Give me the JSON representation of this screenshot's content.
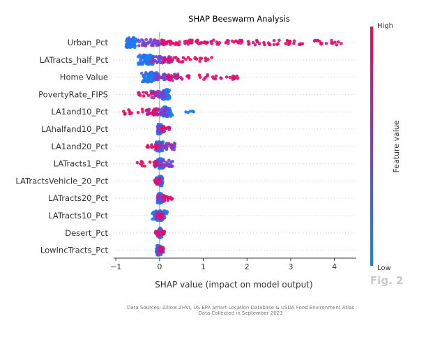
{
  "chart_data": {
    "type": "scatter",
    "subtype": "shap-beeswarm",
    "title": "SHAP Beeswarm Analysis",
    "xlabel": "SHAP value (impact on model output)",
    "ylabel": "",
    "xlim": [
      -1.05,
      4.5
    ],
    "xticks": [
      "−1",
      "0",
      "1",
      "2",
      "3",
      "4"
    ],
    "xtick_values": [
      -1,
      0,
      1,
      2,
      3,
      4
    ],
    "grid": false,
    "colorbar": {
      "label": "Feature value",
      "high": "High",
      "low": "Low",
      "color_low": "#008afb",
      "color_mid": "#7d3dd1",
      "color_high": "#ff0052"
    },
    "features": [
      {
        "name": "Urban_Pct",
        "low_cluster": {
          "min": -0.8,
          "max": -0.5,
          "center": -0.72
        },
        "mid_cluster": {
          "min": -0.5,
          "max": 0.1
        },
        "high_tail": {
          "min": 0.05,
          "max": 4.2
        },
        "extra_blue": []
      },
      {
        "name": "LATracts_half_Pct",
        "low_cluster": {
          "min": -0.5,
          "max": -0.1,
          "center": -0.3
        },
        "mid_cluster": {
          "min": -0.2,
          "max": 0.3
        },
        "high_tail": {
          "min": 0.1,
          "max": 1.3
        },
        "extra_blue": []
      },
      {
        "name": "Home Value",
        "low_cluster": {
          "min": -0.45,
          "max": 0.0,
          "center": -0.2
        },
        "mid_cluster": {
          "min": -0.1,
          "max": 0.5
        },
        "high_tail": {
          "min": 0.2,
          "max": 1.8
        },
        "extra_blue": []
      },
      {
        "name": "PovertyRate_FIPS",
        "low_cluster": {
          "min": 0.05,
          "max": 0.25,
          "center": 0.15
        },
        "mid_cluster": {
          "min": -0.2,
          "max": 0.1
        },
        "high_tail": {
          "min": -0.5,
          "max": -0.1
        },
        "extra_blue": []
      },
      {
        "name": "LA1and10_Pct",
        "low_cluster": {
          "min": 0.0,
          "max": 0.3,
          "center": 0.15
        },
        "mid_cluster": {
          "min": -0.3,
          "max": 0.2
        },
        "high_tail": {
          "min": -0.85,
          "max": -0.05
        },
        "extra_blue": [
          0.6,
          0.65,
          0.7,
          0.75,
          0.78
        ]
      },
      {
        "name": "LAhalfand10_Pct",
        "low_cluster": {
          "min": -0.05,
          "max": 0.05,
          "center": 0.0
        },
        "mid_cluster": {
          "min": -0.05,
          "max": 0.1
        },
        "high_tail": {
          "min": 0.05,
          "max": 0.25
        },
        "extra_blue": []
      },
      {
        "name": "LA1and20_Pct",
        "low_cluster": {
          "min": -0.1,
          "max": 0.1,
          "center": 0.0
        },
        "mid_cluster": {
          "min": -0.1,
          "max": 0.35
        },
        "high_tail": {
          "min": -0.3,
          "max": -0.05
        },
        "extra_blue": []
      },
      {
        "name": "LATracts1_Pct",
        "low_cluster": {
          "min": -0.05,
          "max": 0.1,
          "center": 0.0
        },
        "mid_cluster": {
          "min": -0.1,
          "max": 0.3
        },
        "high_tail": {
          "min": -0.55,
          "max": -0.05
        },
        "extra_blue": []
      },
      {
        "name": "LATractsVehicle_20_Pct",
        "low_cluster": {
          "min": -0.02,
          "max": 0.08,
          "center": 0.02
        },
        "mid_cluster": {
          "min": -0.1,
          "max": 0.05
        },
        "high_tail": {
          "min": -0.12,
          "max": 0.0
        },
        "extra_blue": []
      },
      {
        "name": "LATracts20_Pct",
        "low_cluster": {
          "min": -0.05,
          "max": 0.05,
          "center": 0.0
        },
        "mid_cluster": {
          "min": -0.05,
          "max": 0.1
        },
        "high_tail": {
          "min": 0.1,
          "max": 0.3
        },
        "extra_blue": []
      },
      {
        "name": "LATracts10_Pct",
        "low_cluster": {
          "min": -0.2,
          "max": 0.2,
          "center": 0.0
        },
        "mid_cluster": {
          "min": -0.1,
          "max": 0.1
        },
        "high_tail": {
          "min": -0.05,
          "max": 0.05
        },
        "extra_blue": []
      },
      {
        "name": "Desert_Pct",
        "low_cluster": {
          "min": -0.02,
          "max": 0.05,
          "center": 0.02
        },
        "mid_cluster": {
          "min": -0.05,
          "max": 0.05
        },
        "high_tail": {
          "min": -0.1,
          "max": 0.12
        },
        "extra_blue": []
      },
      {
        "name": "LowIncTracts_Pct",
        "low_cluster": {
          "min": -0.08,
          "max": 0.05,
          "center": -0.02
        },
        "mid_cluster": {
          "min": -0.05,
          "max": 0.1
        },
        "high_tail": {
          "min": 0.0,
          "max": 0.08
        },
        "extra_blue": []
      }
    ]
  },
  "figure_label": "Fig. 2",
  "footer": {
    "line1": "Data Sources: Zillow ZHVI, US EPA Smart Location Database & USDA Food Environment Atlas",
    "line2": "Data Collected in September 2023"
  }
}
